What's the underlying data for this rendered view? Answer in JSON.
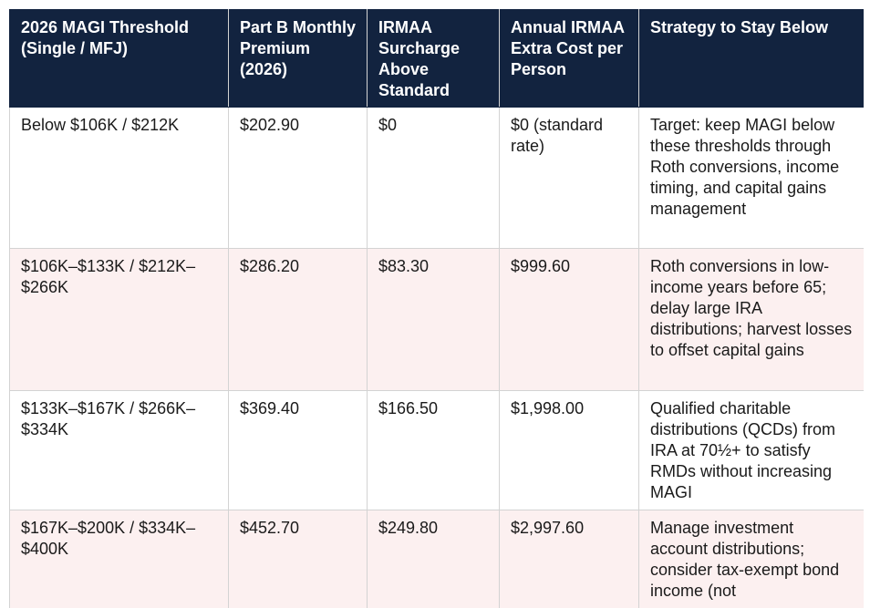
{
  "table": {
    "header": [
      "2026 MAGI Threshold (Single / MFJ)",
      "Part B Monthly Premium (2026)",
      "IRMAA Surcharge Above Standard",
      "Annual IRMAA Extra Cost per Person",
      "Strategy to Stay Below"
    ],
    "rows": [
      [
        "Below $106K / $212K",
        "$202.90",
        "$0",
        "$0 (standard rate)",
        "Target: keep MAGI below these thresholds through Roth conversions, income timing, and capital gains management"
      ],
      [
        "$106K–$133K / $212K–$266K",
        "$286.20",
        "$83.30",
        "$999.60",
        "Roth conversions in low-income years before 65; delay large IRA distributions; harvest losses to offset capital gains"
      ],
      [
        "$133K–$167K / $266K–$334K",
        "$369.40",
        "$166.50",
        "$1,998.00",
        "Qualified charitable distributions (QCDs) from IRA at 70½+ to satisfy RMDs without increasing MAGI"
      ],
      [
        "$167K–$200K / $334K–$400K",
        "$452.70",
        "$249.80",
        "$2,997.60",
        "Manage investment account distributions; consider tax-exempt bond income (not"
      ]
    ]
  }
}
